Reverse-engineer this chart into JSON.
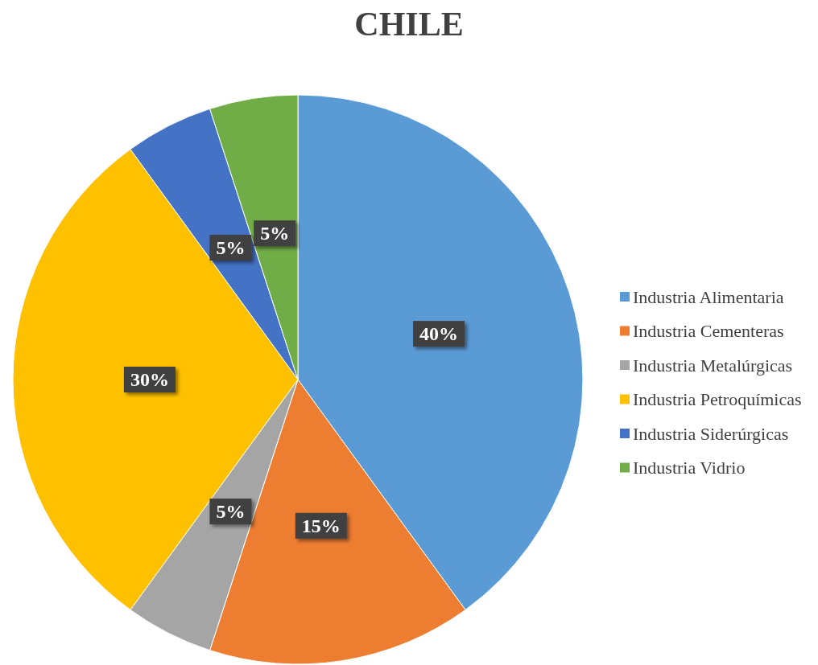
{
  "chart_data": {
    "type": "pie",
    "title": "CHILE",
    "categories": [
      "Industria Alimentaria",
      "Industria Cementeras",
      "Industria Metalúrgicas",
      "Industria Petroquímicas",
      "Industria Siderúrgicas",
      "Industria Vidrio"
    ],
    "values": [
      40,
      15,
      5,
      30,
      5,
      5
    ],
    "colors": [
      "#5b9bd5",
      "#ed7d31",
      "#a5a5a5",
      "#ffc000",
      "#4472c4",
      "#70ad47"
    ],
    "value_labels": [
      "40%",
      "15%",
      "5%",
      "30%",
      "5%",
      "5%"
    ],
    "legend": "right"
  }
}
